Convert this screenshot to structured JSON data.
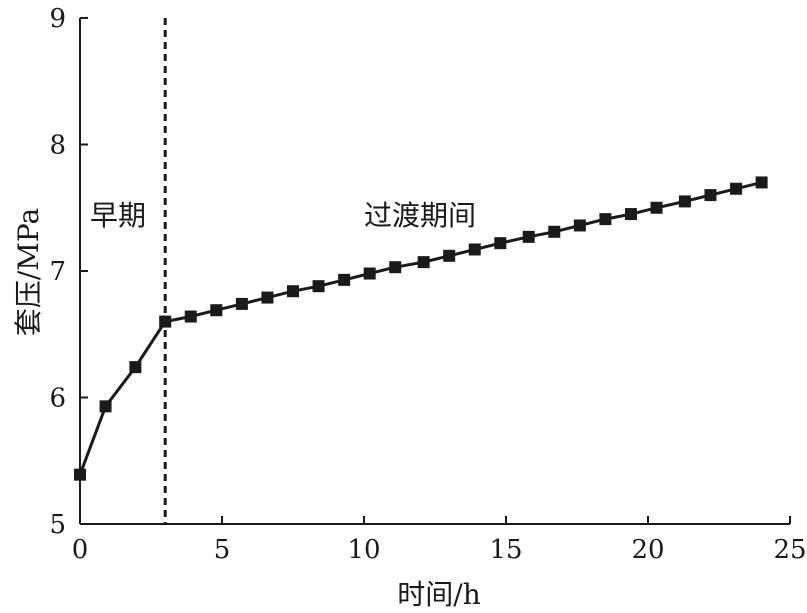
{
  "chart_data": {
    "type": "line",
    "xlabel": "时间/h",
    "ylabel": "套压/MPa",
    "xlim": [
      0,
      25
    ],
    "ylim": [
      5,
      9
    ],
    "xticks": [
      0,
      5,
      10,
      15,
      20,
      25
    ],
    "yticks": [
      5,
      6,
      7,
      8,
      9
    ],
    "grid": false,
    "series": [
      {
        "x": [
          0,
          0.9,
          1.95,
          3.0,
          3.9,
          4.8,
          5.7,
          6.6,
          7.5,
          8.4,
          9.3,
          10.2,
          11.1,
          12.1,
          13.0,
          13.9,
          14.8,
          15.8,
          16.7,
          17.6,
          18.5,
          19.4,
          20.3,
          21.3,
          22.2,
          23.1,
          24.0
        ],
        "y": [
          5.39,
          5.93,
          6.24,
          6.6,
          6.64,
          6.69,
          6.74,
          6.79,
          6.84,
          6.88,
          6.93,
          6.98,
          7.03,
          7.07,
          7.12,
          7.17,
          7.22,
          7.27,
          7.31,
          7.36,
          7.41,
          7.45,
          7.5,
          7.55,
          7.6,
          7.65,
          7.7
        ]
      }
    ],
    "divider": {
      "x": 3.0,
      "style": "dashed"
    },
    "annotations": [
      "早期",
      "过渡期间"
    ]
  }
}
